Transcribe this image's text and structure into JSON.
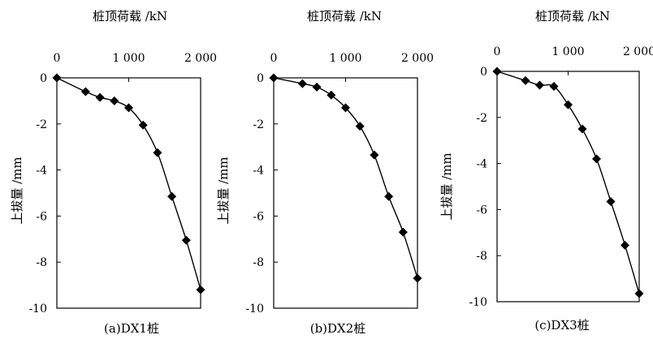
{
  "chart_data": [
    {
      "type": "line",
      "title": "桩顶荷载 /kN",
      "xlabel": "桩顶荷载 /kN",
      "ylabel": "上拔量 /mm",
      "caption": "(a)DX1桩",
      "xlim": [
        0,
        2000
      ],
      "ylim": [
        -10,
        0
      ],
      "x_ticks": [
        "0",
        "1 000",
        "2 000"
      ],
      "y_ticks": [
        "0",
        "-2",
        "-4",
        "-6",
        "-8",
        "-10"
      ],
      "grid": false,
      "series": [
        {
          "x": [
            0,
            400,
            600,
            800,
            1000,
            1200,
            1400,
            1600,
            1800,
            2000
          ],
          "y": [
            0,
            -0.6,
            -0.85,
            -1.0,
            -1.3,
            -2.05,
            -3.25,
            -5.15,
            -7.05,
            -9.2
          ]
        }
      ]
    },
    {
      "type": "line",
      "title": "桩顶荷载 /kN",
      "xlabel": "桩顶荷载 /kN",
      "ylabel": "上拔量 /mm",
      "caption": "(b)DX2桩",
      "xlim": [
        0,
        2000
      ],
      "ylim": [
        -10,
        0
      ],
      "x_ticks": [
        "0",
        "1 000",
        "2 000"
      ],
      "y_ticks": [
        "0",
        "-2",
        "-4",
        "-6",
        "-8",
        "-10"
      ],
      "grid": false,
      "series": [
        {
          "x": [
            0,
            400,
            600,
            800,
            1000,
            1200,
            1400,
            1600,
            1800,
            2000
          ],
          "y": [
            0,
            -0.25,
            -0.4,
            -0.75,
            -1.3,
            -2.1,
            -3.35,
            -5.15,
            -6.7,
            -8.7
          ]
        }
      ]
    },
    {
      "type": "line",
      "title": "桩顶荷载 /kN",
      "xlabel": "桩顶荷载 /kN",
      "ylabel": "上拔量 /mm",
      "caption": "(c)DX3桩",
      "xlim": [
        0,
        2000
      ],
      "ylim": [
        -10,
        0
      ],
      "x_ticks": [
        "0",
        "1 000",
        "2 000"
      ],
      "y_ticks": [
        "0",
        "-2",
        "-4",
        "-6",
        "-8",
        "-10"
      ],
      "grid": false,
      "series": [
        {
          "x": [
            0,
            400,
            600,
            800,
            1000,
            1200,
            1400,
            1600,
            1800,
            2000
          ],
          "y": [
            0,
            -0.4,
            -0.6,
            -0.65,
            -1.45,
            -2.5,
            -3.8,
            -5.65,
            -7.55,
            -9.65
          ]
        }
      ]
    }
  ]
}
